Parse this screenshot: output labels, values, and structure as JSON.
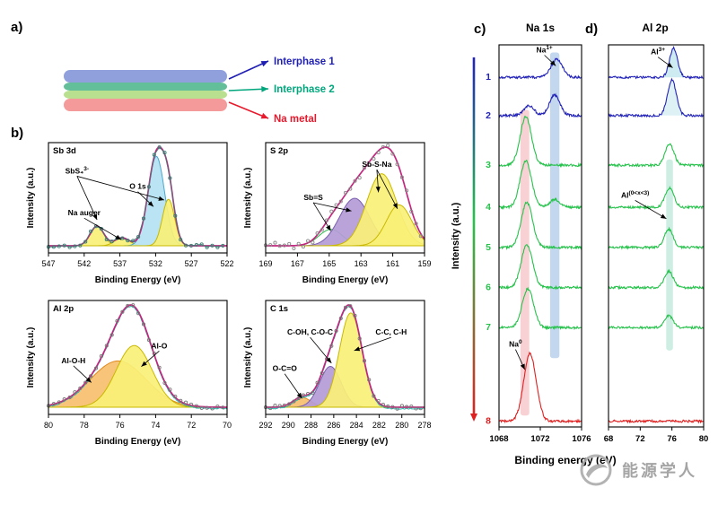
{
  "figure": {
    "panel_labels": {
      "a": "a)",
      "b": "b)",
      "c": "c)",
      "d": "d)"
    },
    "panel_a": {
      "layers": [
        "#8fa0dc",
        "#63bf9a",
        "#b9e08e",
        "#f59a9a"
      ],
      "legend": [
        {
          "label": "Interphase 1",
          "color": "#1f1fb4"
        },
        {
          "label": "Interphase 2",
          "color": "#00a77d"
        },
        {
          "label": "Na metal",
          "color": "#e8192c"
        }
      ]
    },
    "watermark": "能源学人"
  },
  "chart_data": [
    {
      "id": "sb3d",
      "type": "area",
      "title": "Sb 3d",
      "xlabel": "Binding Energy (eV)",
      "ylabel": "Intensity (a.u.)",
      "x_left": 547,
      "x_right": 522,
      "x_ticks": [
        547,
        542,
        537,
        532,
        527,
        522
      ],
      "envelope_color": "#c2267e",
      "raw_color": "#3a7d74",
      "raw_line": true,
      "noise": 4,
      "components": [
        {
          "name": "SbS4(3-) 3d3/2",
          "center": 540.2,
          "sigma": 0.95,
          "amp": 0.22,
          "fill": "#f9f077",
          "stroke": "#c9b800"
        },
        {
          "name": "Na auger",
          "center": 536.7,
          "sigma": 1.0,
          "amp": 0.09,
          "fill": "#f9f077",
          "stroke": "#c9b800"
        },
        {
          "name": "O 1s",
          "center": 531.9,
          "sigma": 1.15,
          "amp": 1.0,
          "fill": "#b4e2f2",
          "stroke": "#4aa8cc"
        },
        {
          "name": "SbS4(3-) 3d5/2",
          "center": 530.2,
          "sigma": 0.85,
          "amp": 0.52,
          "fill": "#f9f077",
          "stroke": "#c9b800"
        }
      ],
      "annotations": [
        {
          "text": "SbS₄",
          "sup": "3-",
          "x": 0.16,
          "y": 0.28,
          "arrows": [
            [
              540.2,
              0.7
            ],
            [
              530.8,
              0.52
            ]
          ]
        },
        {
          "text": "O 1s",
          "x": 0.5,
          "y": 0.42,
          "arrows": [
            [
              532.3,
              0.58
            ]
          ]
        },
        {
          "text": "Na auger",
          "x": 0.2,
          "y": 0.66,
          "arrows": [
            [
              536.8,
              0.88
            ]
          ]
        }
      ]
    },
    {
      "id": "s2p",
      "type": "area",
      "title": "S 2p",
      "xlabel": "Binding Energy (eV)",
      "ylabel": "Intensity (a.u.)",
      "x_left": 169,
      "x_right": 159,
      "x_ticks": [
        169,
        167,
        165,
        163,
        161,
        159
      ],
      "envelope_color": "#c2267e",
      "raw_color": "#8a8a8a",
      "noise": 7,
      "components": [
        {
          "name": "Sb=S (2p1/2)",
          "center": 164.9,
          "sigma": 0.75,
          "amp": 0.2,
          "fill": "none",
          "stroke": "#2db84b"
        },
        {
          "name": "Sb=S",
          "center": 163.4,
          "sigma": 0.95,
          "amp": 0.58,
          "fill": "#b49bd6",
          "stroke": "#7a5fae"
        },
        {
          "name": "Sb-S-Na",
          "center": 161.7,
          "sigma": 0.95,
          "amp": 0.88,
          "fill": "#f9f077",
          "stroke": "#c9b800"
        },
        {
          "name": "Sb-S-Na (2)",
          "center": 160.6,
          "sigma": 0.8,
          "amp": 0.5,
          "fill": "#f9f077",
          "stroke": "#c9b800"
        }
      ],
      "annotations": [
        {
          "text": "Sb=S",
          "x": 0.3,
          "y": 0.52,
          "arrows": [
            [
              164.9,
              0.8
            ],
            [
              163.6,
              0.62
            ]
          ]
        },
        {
          "text": "Sb-S-Na",
          "x": 0.7,
          "y": 0.22,
          "arrows": [
            [
              161.9,
              0.45
            ],
            [
              160.7,
              0.6
            ]
          ]
        }
      ]
    },
    {
      "id": "al2p_fit",
      "type": "area",
      "title": "Al 2p",
      "xlabel": "Binding Energy (eV)",
      "ylabel": "Intensity (a.u.)",
      "x_left": 80,
      "x_right": 70,
      "x_ticks": [
        80,
        78,
        76,
        74,
        72,
        70
      ],
      "envelope_color": "#c2267e",
      "raw_color": "#777777",
      "line2_color": "#29b9ae",
      "noise": 4,
      "components": [
        {
          "name": "Al-O-H",
          "center": 76.1,
          "sigma": 1.55,
          "amp": 0.6,
          "fill": "#f6bf6e",
          "stroke": "#e08a1e"
        },
        {
          "name": "Al-O",
          "center": 75.2,
          "sigma": 1.0,
          "amp": 0.8,
          "fill": "#f9f077",
          "stroke": "#c9b800"
        }
      ],
      "annotations": [
        {
          "text": "Al-O-H",
          "x": 0.14,
          "y": 0.55,
          "arrows": [
            [
              77.6,
              0.72
            ]
          ]
        },
        {
          "text": "Al-O",
          "x": 0.62,
          "y": 0.42,
          "arrows": [
            [
              74.8,
              0.58
            ]
          ]
        }
      ]
    },
    {
      "id": "c1s",
      "type": "area",
      "title": "C 1s",
      "xlabel": "Binding Energy (eV)",
      "ylabel": "Intensity (a.u.)",
      "x_left": 292,
      "x_right": 278,
      "x_ticks": [
        292,
        290,
        288,
        286,
        284,
        282,
        280,
        278
      ],
      "envelope_color": "#c2267e",
      "raw_color": "#777777",
      "line2_color": "#29b9ae",
      "noise": 4,
      "components": [
        {
          "name": "O-C=O",
          "center": 288.8,
          "sigma": 0.8,
          "amp": 0.1,
          "fill": "#f6bf6e",
          "stroke": "#e08a1e"
        },
        {
          "name": "C-OH, C-O-C",
          "center": 286.3,
          "sigma": 0.95,
          "amp": 0.42,
          "fill": "#b49bd6",
          "stroke": "#7a5fae"
        },
        {
          "name": "C-C, C-H",
          "center": 284.5,
          "sigma": 1.0,
          "amp": 0.97,
          "fill": "#f9f077",
          "stroke": "#c9b800"
        }
      ],
      "annotations": [
        {
          "text": "C-OH, C-O-C",
          "x": 0.28,
          "y": 0.3,
          "arrows": [
            [
              286.2,
              0.55
            ]
          ]
        },
        {
          "text": "C-C, C-H",
          "x": 0.79,
          "y": 0.3,
          "arrows": [
            [
              284.2,
              0.44
            ]
          ]
        },
        {
          "text": "O-C=O",
          "x": 0.12,
          "y": 0.62,
          "arrows": [
            [
              288.8,
              0.86
            ]
          ]
        }
      ]
    },
    {
      "id": "na1s",
      "type": "line-stack",
      "title": "Na 1s",
      "xlabel": "Binding energy (eV)",
      "ylabel": "Intensity (a.u.)",
      "x_left": 1068,
      "x_right": 1076,
      "x_ticks": [
        1068,
        1072,
        1076
      ],
      "bands": [
        {
          "center": 1070.5,
          "width": 0.85,
          "color": "#f3b3b8",
          "y0": 0.17,
          "y1": 0.97
        },
        {
          "center": 1073.4,
          "width": 0.9,
          "color": "#9bbde4",
          "y0": 0.02,
          "y1": 0.82
        }
      ],
      "traces": [
        {
          "label": "1",
          "color": "#2323b8",
          "baseline": 0.085,
          "peaks": [
            {
              "center": 1073.6,
              "sigma": 0.55,
              "amp": 0.28
            }
          ]
        },
        {
          "label": "2",
          "color": "#2323b8",
          "baseline": 0.185,
          "peaks": [
            {
              "center": 1073.4,
              "sigma": 0.5,
              "amp": 0.32
            },
            {
              "center": 1070.9,
              "sigma": 0.5,
              "amp": 0.15
            }
          ]
        },
        {
          "label": "3",
          "color": "#27c24c",
          "baseline": 0.315,
          "peaks": [
            {
              "center": 1070.6,
              "sigma": 0.55,
              "amp": 0.75
            }
          ]
        },
        {
          "label": "4",
          "color": "#27c24c",
          "baseline": 0.425,
          "peaks": [
            {
              "center": 1070.6,
              "sigma": 0.55,
              "amp": 0.72
            },
            {
              "center": 1073.4,
              "sigma": 0.5,
              "amp": 0.12
            }
          ]
        },
        {
          "label": "5",
          "color": "#27c24c",
          "baseline": 0.53,
          "peaks": [
            {
              "center": 1070.7,
              "sigma": 0.55,
              "amp": 0.7
            }
          ]
        },
        {
          "label": "6",
          "color": "#27c24c",
          "baseline": 0.635,
          "peaks": [
            {
              "center": 1070.7,
              "sigma": 0.55,
              "amp": 0.66
            }
          ]
        },
        {
          "label": "7",
          "color": "#27c24c",
          "baseline": 0.74,
          "peaks": [
            {
              "center": 1070.8,
              "sigma": 0.55,
              "amp": 0.6
            }
          ]
        },
        {
          "label": "8",
          "color": "#e02020",
          "baseline": 0.985,
          "peaks": [
            {
              "center": 1071.0,
              "sigma": 0.6,
              "amp": 1.05
            }
          ]
        }
      ],
      "annotations": [
        {
          "text": "Na",
          "sup": "1+",
          "x": 0.55,
          "y": 0.02,
          "arrows": [
            [
              1073.5,
              0.055
            ]
          ]
        },
        {
          "text": "Na",
          "sup": "0",
          "x": 0.2,
          "y": 0.79,
          "arrows": [
            [
              1070.5,
              0.85
            ]
          ]
        }
      ]
    },
    {
      "id": "al2p_stack",
      "type": "line-stack",
      "title": "Al 2p",
      "xlabel": "Binding energy (eV)",
      "ylabel": "",
      "x_left": 68,
      "x_right": 80,
      "x_ticks": [
        68,
        72,
        76,
        80
      ],
      "bands": [
        {
          "center": 75.7,
          "width": 0.85,
          "color": "#aee3d2",
          "y0": 0.3,
          "y1": 0.8
        }
      ],
      "traces": [
        {
          "label": "1",
          "color": "#2323b8",
          "baseline": 0.085,
          "fill": "#a5dbe8",
          "peaks": [
            {
              "center": 76.2,
              "sigma": 0.5,
              "amp": 0.45
            }
          ]
        },
        {
          "label": "2",
          "color": "#2323b8",
          "baseline": 0.185,
          "fill": "#c2e7ef",
          "peaks": [
            {
              "center": 76.0,
              "sigma": 0.55,
              "amp": 0.55
            }
          ]
        },
        {
          "label": "3",
          "color": "#27c24c",
          "baseline": 0.315,
          "peaks": [
            {
              "center": 75.7,
              "sigma": 0.55,
              "amp": 0.33
            }
          ]
        },
        {
          "label": "4",
          "color": "#27c24c",
          "baseline": 0.425,
          "peaks": [
            {
              "center": 75.7,
              "sigma": 0.55,
              "amp": 0.3
            }
          ]
        },
        {
          "label": "5",
          "color": "#27c24c",
          "baseline": 0.53,
          "peaks": [
            {
              "center": 75.6,
              "sigma": 0.55,
              "amp": 0.28
            }
          ]
        },
        {
          "label": "6",
          "color": "#27c24c",
          "baseline": 0.635,
          "peaks": [
            {
              "center": 75.6,
              "sigma": 0.55,
              "amp": 0.25
            }
          ]
        },
        {
          "label": "7",
          "color": "#27c24c",
          "baseline": 0.74,
          "peaks": [
            {
              "center": 75.6,
              "sigma": 0.55,
              "amp": 0.18
            }
          ]
        },
        {
          "label": "8",
          "color": "#e02020",
          "baseline": 0.985,
          "peaks": []
        }
      ],
      "annotations": [
        {
          "text": "Al",
          "sup": "3+",
          "x": 0.52,
          "y": 0.025,
          "arrows": [
            [
              76.1,
              0.06
            ]
          ]
        },
        {
          "text": "Al",
          "sup": "(0<x<3)",
          "x": 0.28,
          "y": 0.4,
          "arrows": [
            [
              75.3,
              0.455
            ]
          ]
        }
      ]
    }
  ]
}
